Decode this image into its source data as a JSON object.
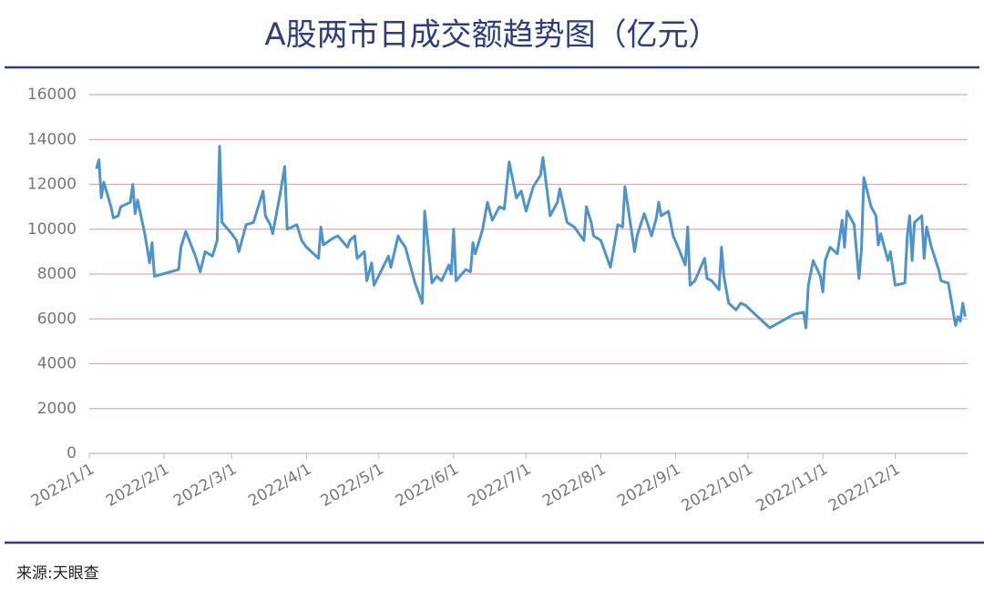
{
  "chart_data": {
    "type": "line",
    "title": "A股两市日成交额趋势图（亿元）",
    "source": "来源:天眼查",
    "color": "#4d93cc",
    "grid": true,
    "ylim": [
      0,
      16000
    ],
    "yticks": [
      0,
      2000,
      4000,
      6000,
      8000,
      10000,
      12000,
      14000,
      16000
    ],
    "xlim": [
      "2022/1/1",
      "2022/12/31"
    ],
    "xticks": [
      "2022/1/1",
      "2022/2/1",
      "2022/3/1",
      "2022/4/1",
      "2022/5/1",
      "2022/6/1",
      "2022/7/1",
      "2022/8/1",
      "2022/9/1",
      "2022/10/1",
      "2022/11/1",
      "2022/12/1"
    ],
    "x": [
      "2022/1/4",
      "2022/1/5",
      "2022/1/6",
      "2022/1/7",
      "2022/1/10",
      "2022/1/11",
      "2022/1/13",
      "2022/1/14",
      "2022/1/18",
      "2022/1/19",
      "2022/1/20",
      "2022/1/21",
      "2022/1/24",
      "2022/1/26",
      "2022/1/27",
      "2022/1/28",
      "2022/2/7",
      "2022/2/8",
      "2022/2/10",
      "2022/2/14",
      "2022/2/16",
      "2022/2/18",
      "2022/2/21",
      "2022/2/23",
      "2022/2/24",
      "2022/2/25",
      "2022/3/1",
      "2022/3/3",
      "2022/3/4",
      "2022/3/7",
      "2022/3/10",
      "2022/3/14",
      "2022/3/15",
      "2022/3/17",
      "2022/3/18",
      "2022/3/21",
      "2022/3/23",
      "2022/3/24",
      "2022/3/28",
      "2022/3/30",
      "2022/4/1",
      "2022/4/6",
      "2022/4/7",
      "2022/4/8",
      "2022/4/12",
      "2022/4/14",
      "2022/4/18",
      "2022/4/19",
      "2022/4/21",
      "2022/4/22",
      "2022/4/25",
      "2022/4/26",
      "2022/4/28",
      "2022/4/29",
      "2022/5/5",
      "2022/5/6",
      "2022/5/9",
      "2022/5/10",
      "2022/5/12",
      "2022/5/16",
      "2022/5/18",
      "2022/5/19",
      "2022/5/20",
      "2022/5/23",
      "2022/5/25",
      "2022/5/27",
      "2022/5/30",
      "2022/5/31",
      "2022/6/1",
      "2022/6/2",
      "2022/6/6",
      "2022/6/8",
      "2022/6/9",
      "2022/6/10",
      "2022/6/13",
      "2022/6/15",
      "2022/6/17",
      "2022/6/20",
      "2022/6/22",
      "2022/6/24",
      "2022/6/27",
      "2022/6/29",
      "2022/7/1",
      "2022/7/4",
      "2022/7/7",
      "2022/7/8",
      "2022/7/11",
      "2022/7/14",
      "2022/7/15",
      "2022/7/18",
      "2022/7/21",
      "2022/7/25",
      "2022/7/26",
      "2022/7/28",
      "2022/7/29",
      "2022/8/1",
      "2022/8/3",
      "2022/8/5",
      "2022/8/8",
      "2022/8/10",
      "2022/8/11",
      "2022/8/15",
      "2022/8/16",
      "2022/8/19",
      "2022/8/22",
      "2022/8/24",
      "2022/8/25",
      "2022/8/26",
      "2022/8/29",
      "2022/8/31",
      "2022/9/2",
      "2022/9/5",
      "2022/9/6",
      "2022/9/7",
      "2022/9/9",
      "2022/9/13",
      "2022/9/14",
      "2022/9/16",
      "2022/9/19",
      "2022/9/20",
      "2022/9/21",
      "2022/9/23",
      "2022/9/26",
      "2022/9/28",
      "2022/9/30",
      "2022/10/10",
      "2022/10/20",
      "2022/10/24",
      "2022/10/25",
      "2022/10/26",
      "2022/10/28",
      "2022/10/31",
      "2022/11/1",
      "2022/11/2",
      "2022/11/4",
      "2022/11/7",
      "2022/11/9",
      "2022/11/10",
      "2022/11/11",
      "2022/11/14",
      "2022/11/16",
      "2022/11/17",
      "2022/11/18",
      "2022/11/21",
      "2022/11/23",
      "2022/11/24",
      "2022/11/25",
      "2022/11/28",
      "2022/11/29",
      "2022/12/1",
      "2022/12/5",
      "2022/12/6",
      "2022/12/7",
      "2022/12/8",
      "2022/12/9",
      "2022/12/12",
      "2022/12/13",
      "2022/12/14",
      "2022/12/16",
      "2022/12/19",
      "2022/12/20",
      "2022/12/23",
      "2022/12/26",
      "2022/12/27",
      "2022/12/28",
      "2022/12/29",
      "2022/12/30"
    ],
    "values": [
      12700,
      13100,
      11400,
      12100,
      11000,
      10500,
      10600,
      11000,
      11200,
      12000,
      10700,
      11300,
      9800,
      8500,
      9400,
      7900,
      8200,
      9200,
      9900,
      8800,
      8100,
      9000,
      8800,
      9500,
      13700,
      10300,
      9800,
      9500,
      9000,
      10200,
      10300,
      11700,
      10600,
      10200,
      9800,
      11500,
      12800,
      10000,
      10200,
      9500,
      9200,
      8700,
      10100,
      9300,
      9600,
      9700,
      9200,
      9500,
      9700,
      8700,
      9000,
      7700,
      8500,
      7500,
      8800,
      8300,
      9700,
      9500,
      9200,
      7600,
      7000,
      6700,
      10800,
      7600,
      7900,
      7700,
      8400,
      8000,
      10000,
      7700,
      8200,
      8100,
      9400,
      8900,
      10000,
      11200,
      10400,
      11000,
      10900,
      13000,
      11400,
      11700,
      10800,
      11900,
      12400,
      13200,
      10600,
      11200,
      11800,
      10300,
      10100,
      9500,
      11000,
      10300,
      9700,
      9500,
      8900,
      8300,
      10200,
      10100,
      11900,
      9000,
      9700,
      10700,
      9700,
      10500,
      11200,
      10600,
      10800,
      9700,
      9200,
      8400,
      10100,
      7500,
      7700,
      8700,
      7800,
      7700,
      7300,
      9200,
      7900,
      6700,
      6400,
      6700,
      6600,
      5600,
      6200,
      6300,
      5600,
      7500,
      8600,
      7900,
      7200,
      8600,
      9200,
      8900,
      10400,
      9200,
      10800,
      10200,
      7800,
      9100,
      12300,
      11000,
      10600,
      9300,
      9800,
      8600,
      9000,
      7500,
      7600,
      9700,
      10600,
      8600,
      10300,
      10600,
      8700,
      10100,
      9200,
      8200,
      7700,
      7600,
      5700,
      6100,
      5900,
      6700,
      6100
    ]
  }
}
